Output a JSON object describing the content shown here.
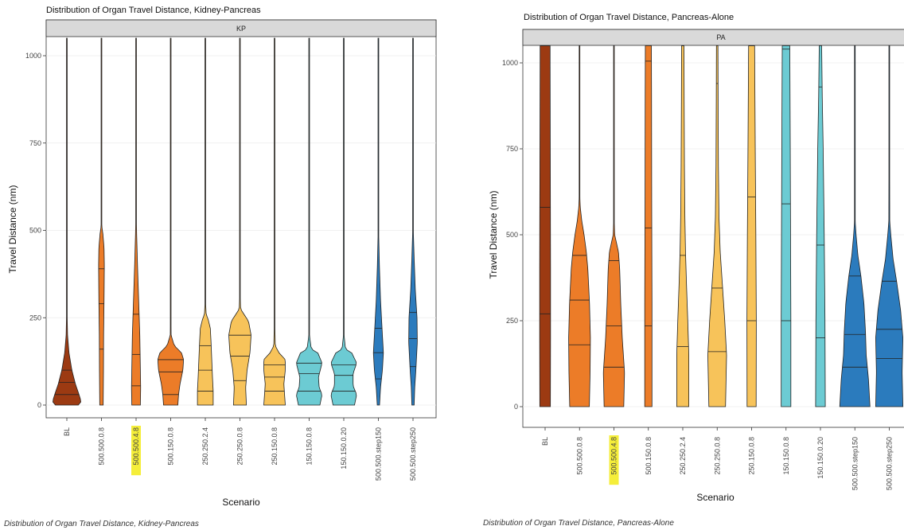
{
  "captions": {
    "left": "Distribution of Organ Travel Distance, Kidney-Pancreas",
    "right": "Distribution of Organ Travel Distance, Pancreas-Alone"
  },
  "colors": {
    "BL": "#9c3a12",
    "500.500.0.8": "#ec7c28",
    "500.500.4.8": "#ec7c28",
    "500.150.0.8": "#ec7c28",
    "250.250.2.4": "#f7c35a",
    "250.250.0.8": "#f7c35a",
    "250.150.0.8": "#f7c35a",
    "150.150.0.8": "#6ccbd3",
    "150.150.0.20": "#6ccbd3",
    "500.500.step150": "#2b7bbd",
    "500.500.step250": "#2b7bbd",
    "highlight": "#f5ee3a"
  },
  "chart_data": [
    {
      "type": "violin",
      "title": "Distribution of Organ Travel Distance, Kidney-Pancreas",
      "facet": "KP",
      "xlabel": "Scenario",
      "ylabel": "Travel Distance (nm)",
      "ylim": [
        -30,
        1050
      ],
      "yticks": [
        0,
        250,
        500,
        750,
        1000
      ],
      "highlighted_category": "500.500.4.8",
      "categories": [
        "BL",
        "500.500.0.8",
        "500.500.4.8",
        "500.150.0.8",
        "250.250.2.4",
        "250.250.0.8",
        "250.150.0.8",
        "150.150.0.8",
        "150.150.0.20",
        "500.500.step150",
        "500.500.step250"
      ],
      "series": [
        {
          "category": "BL",
          "quantiles": [
            30,
            65,
            100
          ],
          "profile": [
            [
              0,
              0.8
            ],
            [
              10,
              1.0
            ],
            [
              30,
              0.85
            ],
            [
              60,
              0.6
            ],
            [
              100,
              0.35
            ],
            [
              150,
              0.15
            ],
            [
              200,
              0.05
            ],
            [
              260,
              0.02
            ],
            [
              350,
              0.005
            ],
            [
              1050,
              0.005
            ]
          ]
        },
        {
          "category": "500.500.0.8",
          "quantiles": [
            160,
            290,
            390
          ],
          "profile": [
            [
              0,
              0.12
            ],
            [
              100,
              0.14
            ],
            [
              200,
              0.15
            ],
            [
              300,
              0.18
            ],
            [
              400,
              0.2
            ],
            [
              450,
              0.18
            ],
            [
              490,
              0.1
            ],
            [
              510,
              0.03
            ],
            [
              550,
              0.005
            ],
            [
              1050,
              0.005
            ]
          ]
        },
        {
          "category": "500.500.4.8",
          "quantiles": [
            55,
            145,
            260
          ],
          "profile": [
            [
              0,
              0.3
            ],
            [
              50,
              0.32
            ],
            [
              100,
              0.3
            ],
            [
              200,
              0.26
            ],
            [
              300,
              0.18
            ],
            [
              400,
              0.1
            ],
            [
              490,
              0.04
            ],
            [
              550,
              0.01
            ],
            [
              1050,
              0.005
            ]
          ]
        },
        {
          "category": "500.150.0.8",
          "quantiles": [
            30,
            95,
            130
          ],
          "profile": [
            [
              0,
              0.5
            ],
            [
              30,
              0.55
            ],
            [
              60,
              0.65
            ],
            [
              100,
              0.85
            ],
            [
              130,
              0.9
            ],
            [
              150,
              0.75
            ],
            [
              170,
              0.25
            ],
            [
              200,
              0.03
            ],
            [
              300,
              0.01
            ],
            [
              1050,
              0.005
            ]
          ]
        },
        {
          "category": "250.250.2.4",
          "quantiles": [
            40,
            100,
            170
          ],
          "profile": [
            [
              0,
              0.55
            ],
            [
              40,
              0.55
            ],
            [
              80,
              0.5
            ],
            [
              130,
              0.45
            ],
            [
              180,
              0.4
            ],
            [
              220,
              0.35
            ],
            [
              245,
              0.2
            ],
            [
              260,
              0.06
            ],
            [
              300,
              0.01
            ],
            [
              1050,
              0.005
            ]
          ]
        },
        {
          "category": "250.250.0.8",
          "quantiles": [
            70,
            140,
            200
          ],
          "profile": [
            [
              0,
              0.45
            ],
            [
              50,
              0.4
            ],
            [
              100,
              0.5
            ],
            [
              150,
              0.7
            ],
            [
              200,
              0.78
            ],
            [
              240,
              0.6
            ],
            [
              262,
              0.25
            ],
            [
              275,
              0.05
            ],
            [
              320,
              0.01
            ],
            [
              1050,
              0.005
            ]
          ]
        },
        {
          "category": "250.150.0.8",
          "quantiles": [
            40,
            80,
            115
          ],
          "profile": [
            [
              0,
              0.75
            ],
            [
              30,
              0.7
            ],
            [
              60,
              0.65
            ],
            [
              100,
              0.75
            ],
            [
              130,
              0.75
            ],
            [
              150,
              0.3
            ],
            [
              170,
              0.05
            ],
            [
              250,
              0.01
            ],
            [
              1050,
              0.005
            ]
          ]
        },
        {
          "category": "150.150.0.8",
          "quantiles": [
            40,
            90,
            120
          ],
          "profile": [
            [
              0,
              0.75
            ],
            [
              30,
              0.9
            ],
            [
              50,
              0.7
            ],
            [
              80,
              0.65
            ],
            [
              120,
              0.9
            ],
            [
              150,
              0.6
            ],
            [
              160,
              0.15
            ],
            [
              200,
              0.02
            ],
            [
              1050,
              0.005
            ]
          ]
        },
        {
          "category": "150.150.0.20",
          "quantiles": [
            40,
            85,
            115
          ],
          "profile": [
            [
              0,
              0.75
            ],
            [
              30,
              0.9
            ],
            [
              55,
              0.65
            ],
            [
              90,
              0.65
            ],
            [
              120,
              0.9
            ],
            [
              150,
              0.55
            ],
            [
              160,
              0.12
            ],
            [
              200,
              0.02
            ],
            [
              1050,
              0.005
            ]
          ]
        },
        {
          "category": "500.500.step150",
          "quantiles": [
            75,
            150,
            220
          ],
          "profile": [
            [
              0,
              0.08
            ],
            [
              50,
              0.15
            ],
            [
              100,
              0.28
            ],
            [
              150,
              0.35
            ],
            [
              200,
              0.28
            ],
            [
              300,
              0.15
            ],
            [
              400,
              0.07
            ],
            [
              490,
              0.02
            ],
            [
              1050,
              0.005
            ]
          ]
        },
        {
          "category": "500.500.step250",
          "quantiles": [
            110,
            190,
            265
          ],
          "profile": [
            [
              0,
              0.08
            ],
            [
              50,
              0.12
            ],
            [
              100,
              0.2
            ],
            [
              180,
              0.3
            ],
            [
              250,
              0.28
            ],
            [
              330,
              0.16
            ],
            [
              420,
              0.08
            ],
            [
              500,
              0.02
            ],
            [
              1050,
              0.005
            ]
          ]
        }
      ]
    },
    {
      "type": "violin",
      "title": "Distribution of Organ Travel Distance, Pancreas-Alone",
      "facet": "PA",
      "xlabel": "Scenario",
      "ylabel": "Travel Distance (nm)",
      "ylim": [
        -30,
        1050
      ],
      "yticks": [
        0,
        250,
        500,
        750,
        1000
      ],
      "highlighted_category": "500.500.4.8",
      "categories": [
        "BL",
        "500.500.0.8",
        "500.500.4.8",
        "500.150.0.8",
        "250.250.2.4",
        "250.250.0.8",
        "250.150.0.8",
        "150.150.0.8",
        "150.150.0.20",
        "500.500.step150",
        "500.500.step250"
      ],
      "series": [
        {
          "category": "BL",
          "quantiles": [
            270,
            580,
            1050
          ],
          "profile": [
            [
              0,
              0.35
            ],
            [
              200,
              0.36
            ],
            [
              400,
              0.36
            ],
            [
              600,
              0.35
            ],
            [
              800,
              0.34
            ],
            [
              1000,
              0.33
            ],
            [
              1050,
              0.33
            ]
          ]
        },
        {
          "category": "500.500.0.8",
          "quantiles": [
            180,
            310,
            440
          ],
          "profile": [
            [
              0,
              0.65
            ],
            [
              100,
              0.7
            ],
            [
              200,
              0.72
            ],
            [
              300,
              0.66
            ],
            [
              400,
              0.55
            ],
            [
              450,
              0.45
            ],
            [
              500,
              0.3
            ],
            [
              540,
              0.15
            ],
            [
              580,
              0.05
            ],
            [
              620,
              0.01
            ],
            [
              1050,
              0.005
            ]
          ]
        },
        {
          "category": "500.500.4.8",
          "quantiles": [
            115,
            235,
            425
          ],
          "profile": [
            [
              0,
              0.65
            ],
            [
              100,
              0.7
            ],
            [
              200,
              0.55
            ],
            [
              300,
              0.45
            ],
            [
              400,
              0.38
            ],
            [
              450,
              0.3
            ],
            [
              480,
              0.15
            ],
            [
              500,
              0.05
            ],
            [
              550,
              0.01
            ],
            [
              1050,
              0.005
            ]
          ]
        },
        {
          "category": "500.150.0.8",
          "quantiles": [
            235,
            520,
            1005
          ],
          "profile": [
            [
              0,
              0.24
            ],
            [
              300,
              0.24
            ],
            [
              600,
              0.22
            ],
            [
              900,
              0.21
            ],
            [
              1050,
              0.2
            ]
          ]
        },
        {
          "category": "250.250.2.4",
          "quantiles": [
            175,
            440,
            1050
          ],
          "profile": [
            [
              0,
              0.4
            ],
            [
              150,
              0.4
            ],
            [
              250,
              0.33
            ],
            [
              350,
              0.25
            ],
            [
              450,
              0.18
            ],
            [
              550,
              0.14
            ],
            [
              700,
              0.11
            ],
            [
              900,
              0.09
            ],
            [
              1050,
              0.08
            ]
          ]
        },
        {
          "category": "250.250.0.8",
          "quantiles": [
            160,
            345,
            940
          ],
          "profile": [
            [
              0,
              0.55
            ],
            [
              150,
              0.62
            ],
            [
              250,
              0.5
            ],
            [
              350,
              0.35
            ],
            [
              450,
              0.2
            ],
            [
              550,
              0.12
            ],
            [
              700,
              0.08
            ],
            [
              900,
              0.06
            ],
            [
              1050,
              0.05
            ]
          ]
        },
        {
          "category": "250.150.0.8",
          "quantiles": [
            250,
            610,
            1050
          ],
          "profile": [
            [
              0,
              0.3
            ],
            [
              250,
              0.31
            ],
            [
              500,
              0.28
            ],
            [
              750,
              0.24
            ],
            [
              1050,
              0.2
            ]
          ]
        },
        {
          "category": "150.150.0.8",
          "quantiles": [
            250,
            590,
            1040
          ],
          "profile": [
            [
              0,
              0.32
            ],
            [
              250,
              0.32
            ],
            [
              500,
              0.3
            ],
            [
              750,
              0.28
            ],
            [
              1050,
              0.25
            ]
          ]
        },
        {
          "category": "150.150.0.20",
          "quantiles": [
            200,
            470,
            930
          ],
          "profile": [
            [
              0,
              0.32
            ],
            [
              250,
              0.3
            ],
            [
              500,
              0.25
            ],
            [
              750,
              0.18
            ],
            [
              900,
              0.12
            ],
            [
              1050,
              0.08
            ]
          ]
        },
        {
          "category": "500.500.step150",
          "quantiles": [
            115,
            210,
            380
          ],
          "profile": [
            [
              0,
              1.0
            ],
            [
              80,
              0.9
            ],
            [
              150,
              0.75
            ],
            [
              220,
              0.7
            ],
            [
              300,
              0.6
            ],
            [
              380,
              0.4
            ],
            [
              440,
              0.2
            ],
            [
              500,
              0.08
            ],
            [
              540,
              0.02
            ],
            [
              1050,
              0.005
            ]
          ]
        },
        {
          "category": "500.500.step250",
          "quantiles": [
            140,
            225,
            365
          ],
          "profile": [
            [
              0,
              0.9
            ],
            [
              100,
              0.85
            ],
            [
              200,
              0.9
            ],
            [
              280,
              0.75
            ],
            [
              360,
              0.5
            ],
            [
              430,
              0.25
            ],
            [
              500,
              0.1
            ],
            [
              540,
              0.03
            ],
            [
              1050,
              0.005
            ]
          ]
        }
      ]
    }
  ]
}
